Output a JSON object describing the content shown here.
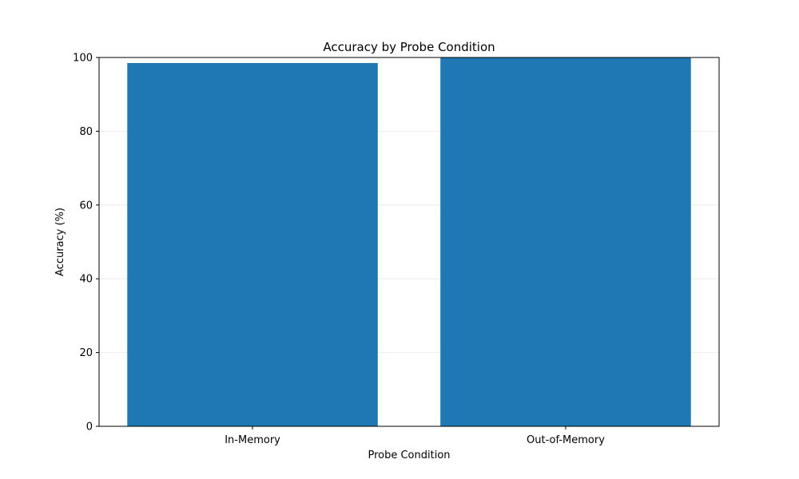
{
  "chart_data": {
    "type": "bar",
    "title": "Accuracy by Probe Condition",
    "xlabel": "Probe Condition",
    "ylabel": "Accuracy (%)",
    "categories": [
      "In-Memory",
      "Out-of-Memory"
    ],
    "values": [
      98.5,
      100
    ],
    "ylim": [
      0,
      100
    ],
    "yticks": [
      0,
      20,
      40,
      60,
      80,
      100
    ],
    "grid": true,
    "bar_color": "#1f77b4"
  }
}
